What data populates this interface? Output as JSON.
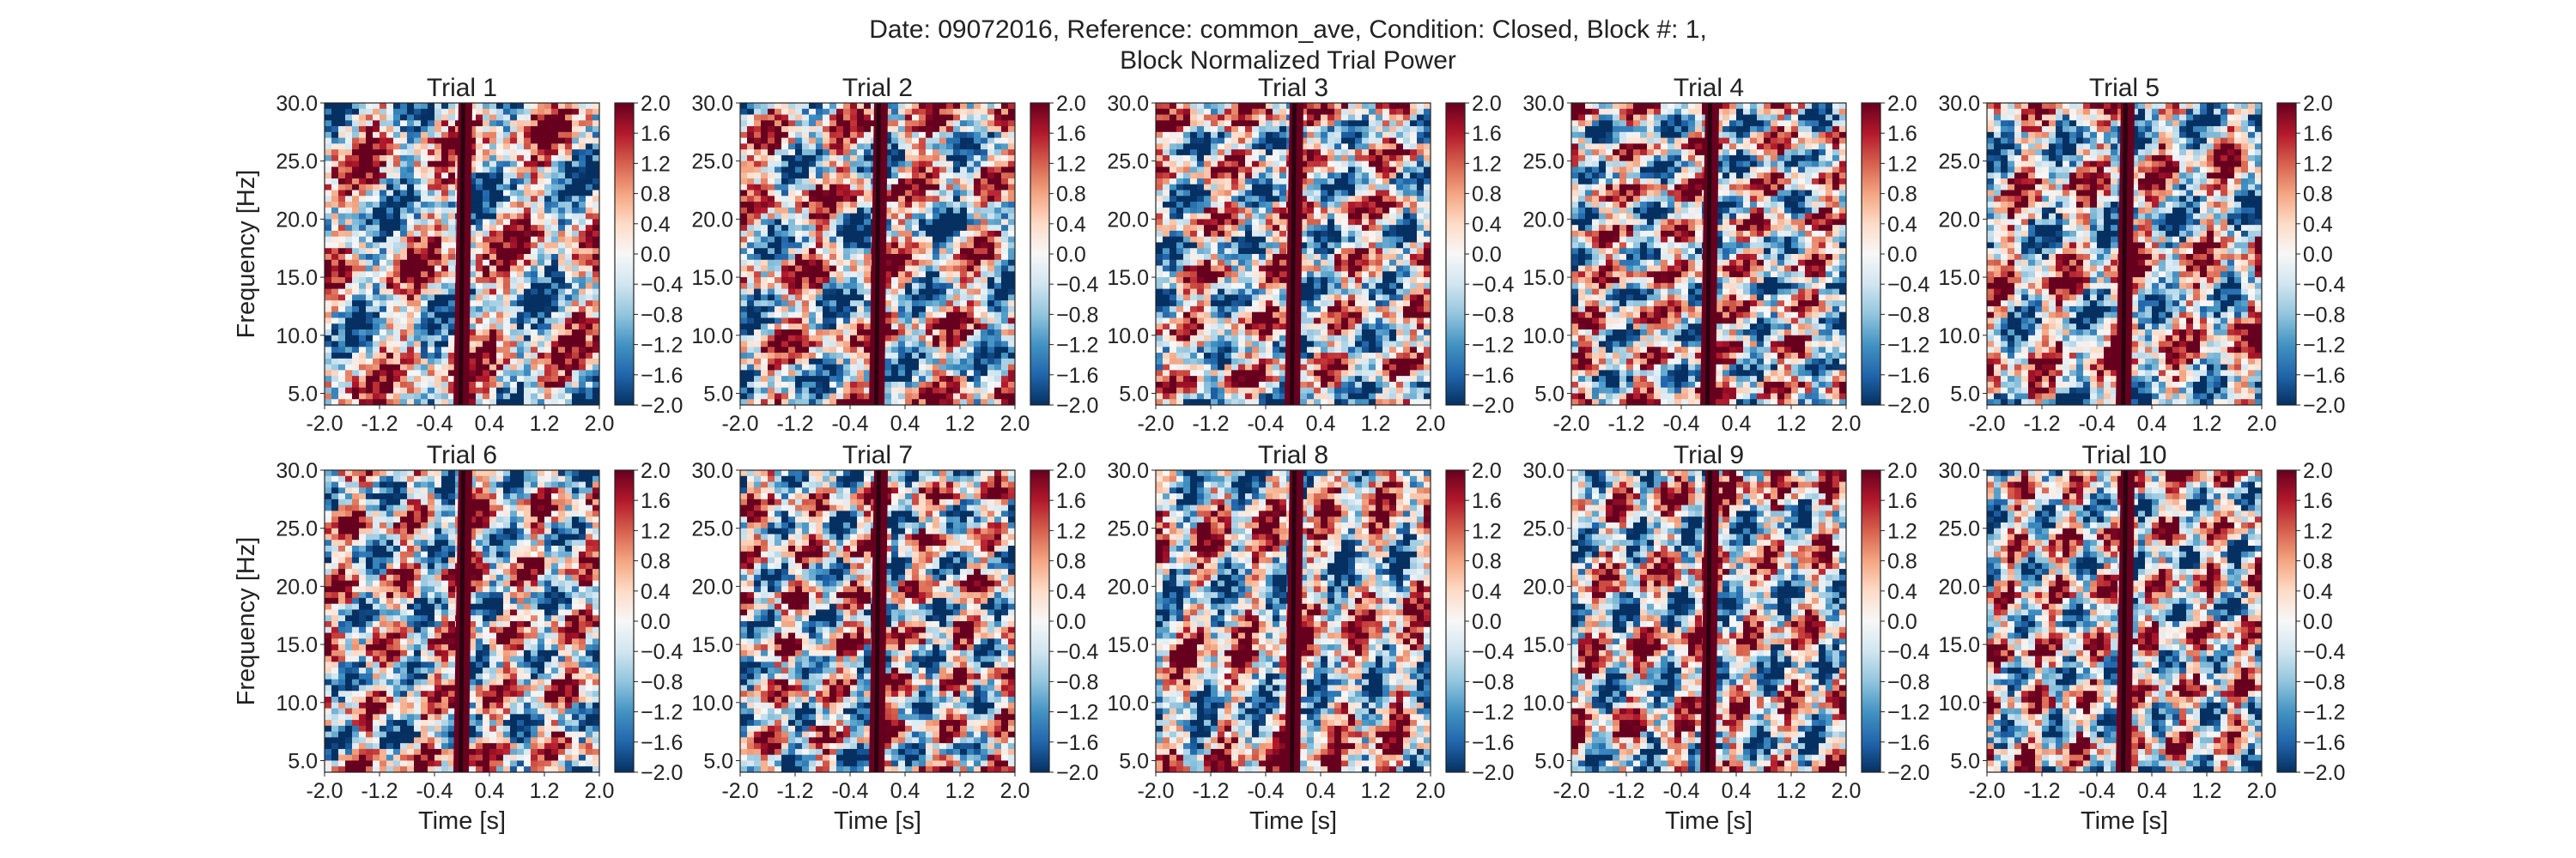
{
  "figure": {
    "suptitle_line1": "Date: 09072016, Reference: common_ave, Condition: Closed, Block #: 1,",
    "suptitle_line2": "Block Normalized Trial Power"
  },
  "chart_data": {
    "type": "heatmap",
    "colormap": "RdBu_r",
    "colors": {
      "low": "#053061",
      "mid": "#f7f7f7",
      "high": "#67001f",
      "text": "#222222"
    },
    "xlabel": "Time [s]",
    "ylabel": "Frequency [Hz]",
    "xlim": [
      -2.0,
      2.0
    ],
    "ylim": [
      4.0,
      30.0
    ],
    "clim": [
      -2.0,
      2.0
    ],
    "xticks": [
      "-2.0",
      "-1.2",
      "-0.4",
      "0.4",
      "1.2",
      "2.0"
    ],
    "yticks": [
      "5.0",
      "10.0",
      "15.0",
      "20.0",
      "25.0",
      "30.0"
    ],
    "colorbar_ticks": [
      "2.0",
      "1.6",
      "1.2",
      "0.8",
      "0.4",
      "0.0",
      "−0.4",
      "−0.8",
      "−1.2",
      "−1.6",
      "−2.0"
    ],
    "grid": false,
    "layout": {
      "rows": 2,
      "cols": 5
    },
    "panels": [
      {
        "title": "Trial 1"
      },
      {
        "title": "Trial 2"
      },
      {
        "title": "Trial 3"
      },
      {
        "title": "Trial 4"
      },
      {
        "title": "Trial 5"
      },
      {
        "title": "Trial 6"
      },
      {
        "title": "Trial 7"
      },
      {
        "title": "Trial 8"
      },
      {
        "title": "Trial 9"
      },
      {
        "title": "Trial 10"
      }
    ]
  }
}
